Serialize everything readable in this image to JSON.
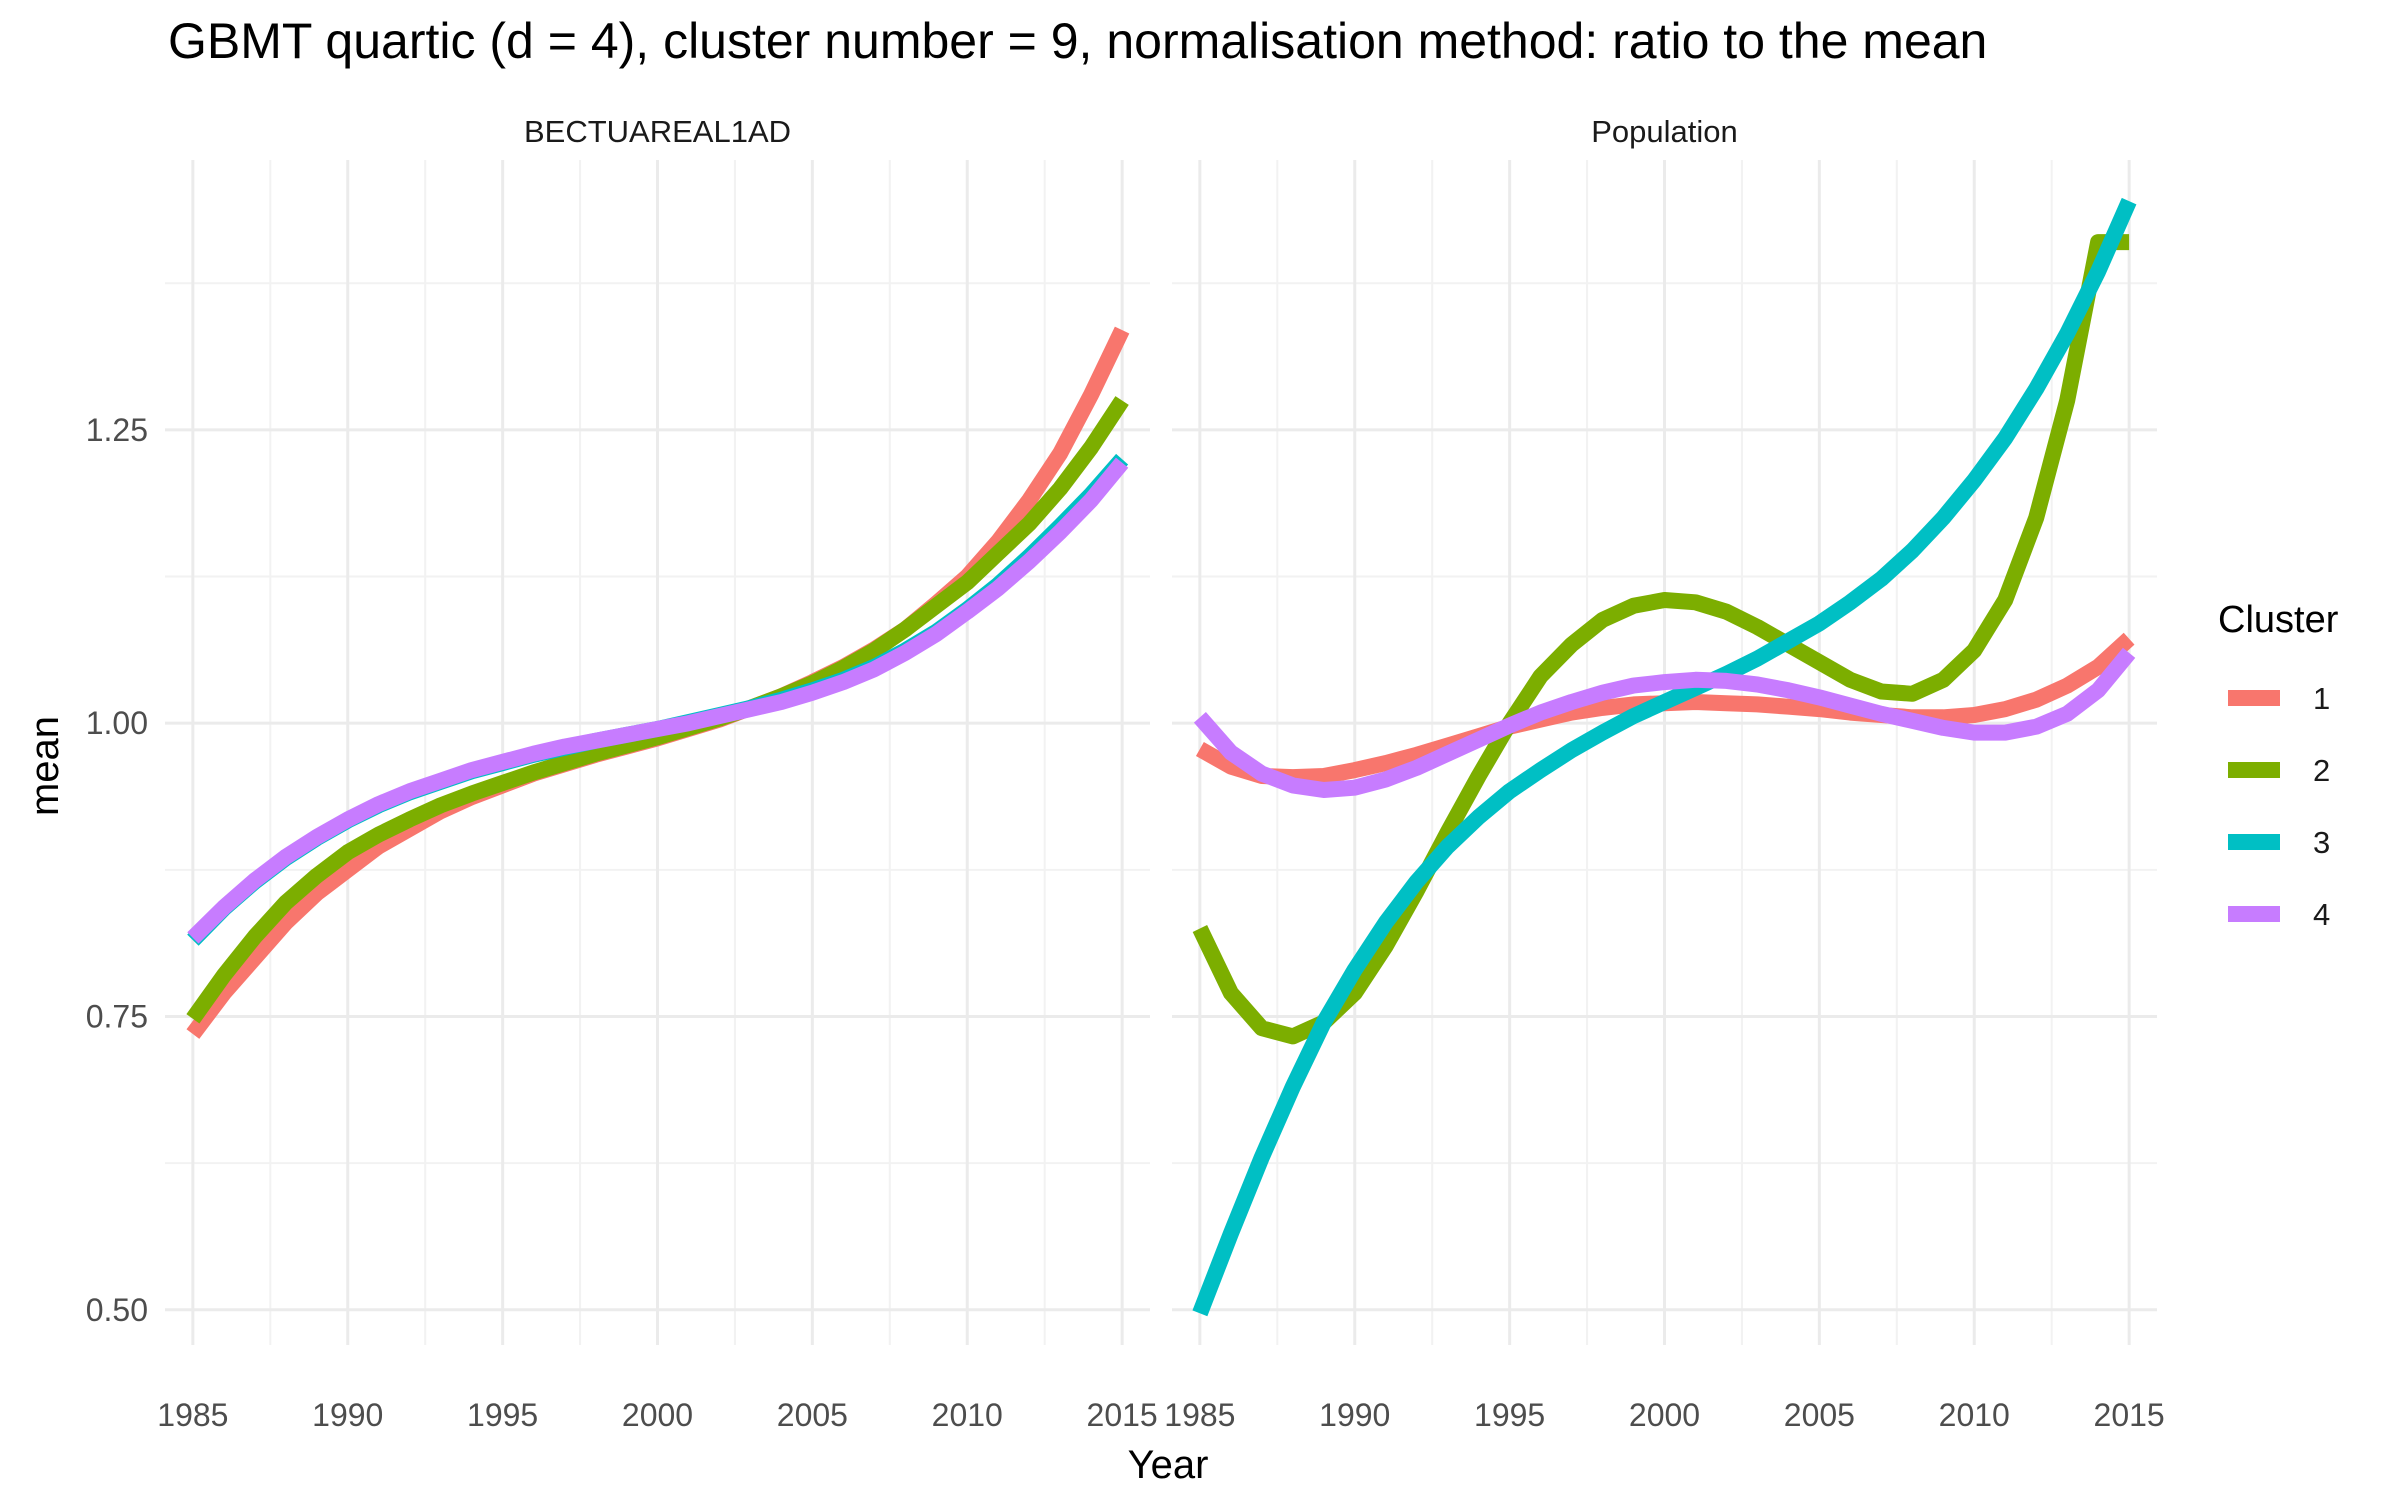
{
  "chart_data": {
    "type": "line",
    "title": "GBMT quartic (d = 4), cluster number = 9, normalisation method: ratio to the mean",
    "xlabel": "Year",
    "ylabel": "mean",
    "xlim": [
      1984.1,
      2015.9
    ],
    "ylim": [
      0.47,
      1.48
    ],
    "x_ticks": [
      1985,
      1990,
      1995,
      2000,
      2005,
      2010,
      2015
    ],
    "x_tick_labels": [
      "1985",
      "1990",
      "1995",
      "2000",
      "2005",
      "2010",
      "2015"
    ],
    "y_ticks": [
      0.5,
      0.75,
      1.0,
      1.25
    ],
    "y_tick_labels": [
      "0.50",
      "0.75",
      "1.00",
      "1.25"
    ],
    "y_minor_ticks": [
      0.625,
      0.875,
      1.125,
      1.375
    ],
    "grid": true,
    "legend": {
      "title": "Cluster",
      "position": "right",
      "entries": [
        {
          "label": "1",
          "color": "#F8766D"
        },
        {
          "label": "2",
          "color": "#7CAE00"
        },
        {
          "label": "3",
          "color": "#00BFC4"
        },
        {
          "label": "4",
          "color": "#C77CFF"
        }
      ]
    },
    "panels": [
      {
        "strip": "BECTUAREAL1AD",
        "series": [
          {
            "name": "1",
            "x": [
              1985,
              1986,
              1987,
              1988,
              1989,
              1990,
              1991,
              1992,
              1993,
              1994,
              1995,
              1996,
              1997,
              1998,
              1999,
              2000,
              2001,
              2002,
              2003,
              2004,
              2005,
              2006,
              2007,
              2008,
              2009,
              2010,
              2011,
              2012,
              2013,
              2014,
              2015
            ],
            "y": [
              0.735,
              0.77,
              0.8,
              0.83,
              0.855,
              0.875,
              0.895,
              0.91,
              0.925,
              0.937,
              0.947,
              0.957,
              0.965,
              0.973,
              0.98,
              0.987,
              0.995,
              1.003,
              1.013,
              1.023,
              1.035,
              1.048,
              1.063,
              1.08,
              1.102,
              1.125,
              1.155,
              1.19,
              1.23,
              1.28,
              1.335
            ]
          },
          {
            "name": "2",
            "x": [
              1985,
              1986,
              1987,
              1988,
              1989,
              1990,
              1991,
              1992,
              1993,
              1994,
              1995,
              1996,
              1997,
              1998,
              1999,
              2000,
              2001,
              2002,
              2003,
              2004,
              2005,
              2006,
              2007,
              2008,
              2009,
              2010,
              2011,
              2012,
              2013,
              2014,
              2015
            ],
            "y": [
              0.748,
              0.785,
              0.818,
              0.847,
              0.87,
              0.89,
              0.905,
              0.918,
              0.93,
              0.94,
              0.949,
              0.958,
              0.966,
              0.974,
              0.981,
              0.988,
              0.996,
              1.004,
              1.013,
              1.023,
              1.034,
              1.047,
              1.062,
              1.08,
              1.1,
              1.12,
              1.145,
              1.17,
              1.2,
              1.235,
              1.275
            ]
          },
          {
            "name": "3",
            "x": [
              1985,
              1986,
              1987,
              1988,
              1989,
              1990,
              1991,
              1992,
              1993,
              1994,
              1995,
              1996,
              1997,
              1998,
              1999,
              2000,
              2001,
              2002,
              2003,
              2004,
              2005,
              2006,
              2007,
              2008,
              2009,
              2010,
              2011,
              2012,
              2013,
              2014,
              2015
            ],
            "y": [
              0.815,
              0.842,
              0.865,
              0.885,
              0.902,
              0.917,
              0.93,
              0.941,
              0.95,
              0.959,
              0.966,
              0.973,
              0.979,
              0.985,
              0.99,
              0.995,
              1.001,
              1.007,
              1.013,
              1.02,
              1.028,
              1.037,
              1.048,
              1.062,
              1.078,
              1.097,
              1.118,
              1.142,
              1.168,
              1.195,
              1.225
            ]
          },
          {
            "name": "4",
            "x": [
              1985,
              1986,
              1987,
              1988,
              1989,
              1990,
              1991,
              1992,
              1993,
              1994,
              1995,
              1996,
              1997,
              1998,
              1999,
              2000,
              2001,
              2002,
              2003,
              2004,
              2005,
              2006,
              2007,
              2008,
              2009,
              2010,
              2011,
              2012,
              2013,
              2014,
              2015
            ],
            "y": [
              0.817,
              0.843,
              0.866,
              0.886,
              0.903,
              0.918,
              0.931,
              0.942,
              0.951,
              0.96,
              0.967,
              0.974,
              0.98,
              0.985,
              0.99,
              0.995,
              1.0,
              1.006,
              1.012,
              1.018,
              1.026,
              1.035,
              1.046,
              1.06,
              1.076,
              1.095,
              1.115,
              1.138,
              1.163,
              1.19,
              1.222
            ]
          }
        ]
      },
      {
        "strip": "Population",
        "series": [
          {
            "name": "1",
            "x": [
              1985,
              1986,
              1987,
              1988,
              1989,
              1990,
              1991,
              1992,
              1993,
              1994,
              1995,
              1996,
              1997,
              1998,
              1999,
              2000,
              2001,
              2002,
              2003,
              2004,
              2005,
              2006,
              2007,
              2008,
              2009,
              2010,
              2011,
              2012,
              2013,
              2014,
              2015
            ],
            "y": [
              0.978,
              0.963,
              0.955,
              0.954,
              0.955,
              0.96,
              0.966,
              0.973,
              0.981,
              0.989,
              0.997,
              1.003,
              1.009,
              1.013,
              1.016,
              1.017,
              1.018,
              1.017,
              1.016,
              1.014,
              1.012,
              1.009,
              1.007,
              1.005,
              1.005,
              1.007,
              1.012,
              1.02,
              1.032,
              1.048,
              1.072
            ]
          },
          {
            "name": "2",
            "x": [
              1985,
              1986,
              1987,
              1988,
              1989,
              1990,
              1991,
              1992,
              1993,
              1994,
              1995,
              1996,
              1997,
              1998,
              1999,
              2000,
              2001,
              2002,
              2003,
              2004,
              2005,
              2006,
              2007,
              2008,
              2009,
              2010,
              2011,
              2012,
              2013,
              2014,
              2015
            ],
            "y": [
              0.825,
              0.77,
              0.74,
              0.733,
              0.745,
              0.77,
              0.81,
              0.857,
              0.907,
              0.955,
              1.0,
              1.04,
              1.067,
              1.088,
              1.1,
              1.105,
              1.103,
              1.095,
              1.082,
              1.067,
              1.052,
              1.037,
              1.027,
              1.025,
              1.037,
              1.062,
              1.105,
              1.175,
              1.275,
              1.41,
              1.41
            ]
          },
          {
            "name": "3",
            "x": [
              1985,
              1986,
              1987,
              1988,
              1989,
              1990,
              1991,
              1992,
              1993,
              1994,
              1995,
              1996,
              1997,
              1998,
              1999,
              2000,
              2001,
              2002,
              2003,
              2004,
              2005,
              2006,
              2007,
              2008,
              2009,
              2010,
              2011,
              2012,
              2013,
              2014,
              2015
            ],
            "y": [
              0.497,
              0.565,
              0.63,
              0.69,
              0.745,
              0.79,
              0.83,
              0.865,
              0.895,
              0.92,
              0.942,
              0.96,
              0.977,
              0.992,
              1.006,
              1.018,
              1.03,
              1.042,
              1.055,
              1.07,
              1.085,
              1.103,
              1.123,
              1.147,
              1.175,
              1.207,
              1.243,
              1.285,
              1.332,
              1.385,
              1.445
            ]
          },
          {
            "name": "4",
            "x": [
              1985,
              1986,
              1987,
              1988,
              1989,
              1990,
              1991,
              1992,
              1993,
              1994,
              1995,
              1996,
              1997,
              1998,
              1999,
              2000,
              2001,
              2002,
              2003,
              2004,
              2005,
              2006,
              2007,
              2008,
              2009,
              2010,
              2011,
              2012,
              2013,
              2014,
              2015
            ],
            "y": [
              1.005,
              0.975,
              0.957,
              0.947,
              0.943,
              0.945,
              0.952,
              0.962,
              0.974,
              0.986,
              0.998,
              1.009,
              1.018,
              1.026,
              1.032,
              1.035,
              1.037,
              1.036,
              1.033,
              1.028,
              1.022,
              1.015,
              1.008,
              1.002,
              0.996,
              0.992,
              0.992,
              0.997,
              1.008,
              1.028,
              1.06
            ]
          }
        ]
      }
    ]
  }
}
